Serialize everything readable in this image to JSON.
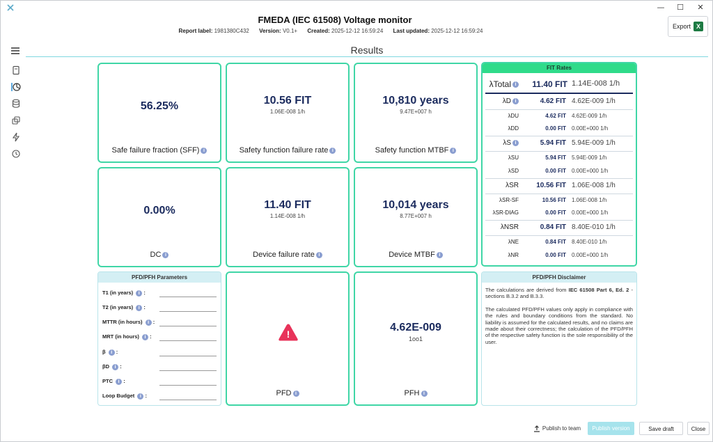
{
  "window": {
    "title": "FMEDA (IEC 61508) Voltage monitor",
    "controls": {
      "minimize": "—",
      "maximize": "☐",
      "close": "✕"
    }
  },
  "meta": {
    "report_label_key": "Report label:",
    "report_label": "1981380C432",
    "version_key": "Version:",
    "version": "V0.1+",
    "created_key": "Created:",
    "created": "2025-12-12 16:59:24",
    "updated_key": "Last updated:",
    "updated": "2025-12-12 16:59:24"
  },
  "export_label": "Export",
  "export_icon": "X",
  "results_title": "Results",
  "cards": {
    "sff": {
      "value": "56.25%",
      "label": "Safe failure fraction (SFF)"
    },
    "sffr": {
      "value": "10.56 FIT",
      "sub": "1.06E-008 1/h",
      "label": "Safety function failure rate"
    },
    "smtbf": {
      "value": "10,810 years",
      "sub": "9.47E+007 h",
      "label": "Safety function MTBF"
    },
    "dc": {
      "value": "0.00%",
      "label": "DC"
    },
    "dfr": {
      "value": "11.40 FIT",
      "sub": "1.14E-008 1/h",
      "label": "Device failure rate"
    },
    "dmtbf": {
      "value": "10,014 years",
      "sub": "8.77E+007 h",
      "label": "Device MTBF"
    },
    "pfd": {
      "label": "PFD"
    },
    "pfh": {
      "value": "4.62E-009",
      "sub": "1oo1",
      "label": "PFH"
    }
  },
  "fit": {
    "title": "FIT Rates",
    "rows": [
      {
        "name": "λTotal",
        "fit": "11.40 FIT",
        "exp": "1.14E-008 1/h"
      },
      {
        "name": "λD",
        "fit": "4.62 FIT",
        "exp": "4.62E-009 1/h"
      },
      {
        "name": "λDU",
        "fit": "4.62 FIT",
        "exp": "4.62E-009 1/h"
      },
      {
        "name": "λDD",
        "fit": "0.00 FIT",
        "exp": "0.00E+000 1/h"
      },
      {
        "name": "λS",
        "fit": "5.94 FIT",
        "exp": "5.94E-009 1/h"
      },
      {
        "name": "λSU",
        "fit": "5.94 FIT",
        "exp": "5.94E-009 1/h"
      },
      {
        "name": "λSD",
        "fit": "0.00 FIT",
        "exp": "0.00E+000 1/h"
      },
      {
        "name": "λSR",
        "fit": "10.56 FIT",
        "exp": "1.06E-008 1/h"
      },
      {
        "name": "λSR-SF",
        "fit": "10.56 FIT",
        "exp": "1.06E-008 1/h"
      },
      {
        "name": "λSR-DIAG",
        "fit": "0.00 FIT",
        "exp": "0.00E+000 1/h"
      },
      {
        "name": "λNSR",
        "fit": "0.84 FIT",
        "exp": "8.40E-010 1/h"
      },
      {
        "name": "λNE",
        "fit": "0.84 FIT",
        "exp": "8.40E-010 1/h"
      },
      {
        "name": "λNR",
        "fit": "0.00 FIT",
        "exp": "0.00E+000 1/h"
      }
    ]
  },
  "params": {
    "title": "PFD/PFH Parameters",
    "items": [
      "T1 (in years)",
      "T2 (in years)",
      "MTTR (in hours)",
      "MRT (in hours)",
      "β",
      "βD",
      "PTC",
      "Loop Budget"
    ],
    "colon": ":"
  },
  "disclaimer": {
    "title": "PFD/PFH Disclaimer",
    "p1_pre": "The calculations are derived from ",
    "p1_bold": "IEC 61508 Part 6, Ed. 2",
    "p1_post": " - sections B.3.2 and B.3.3.",
    "p2": "The calculated PFD/PFH values only apply in compliance with the rules and boundary conditions from the standard. No liability is assumed for the calculated results, and no claims are made about their correctness; the calculation of the PFD/PFH of the respective safety function is the sole responsibility of the user."
  },
  "footer": {
    "publish_team": "Publish to team",
    "publish_version": "Publish version",
    "save_draft": "Save draft",
    "close": "Close"
  },
  "info_glyph": "i",
  "warning_glyph": "!",
  "colors": {
    "accent": "#3fd6a6",
    "fit_header": "#2fdb8a",
    "value_text": "#1b2b5e",
    "panel_header": "#d4eff4",
    "warning": "#e8335a"
  }
}
